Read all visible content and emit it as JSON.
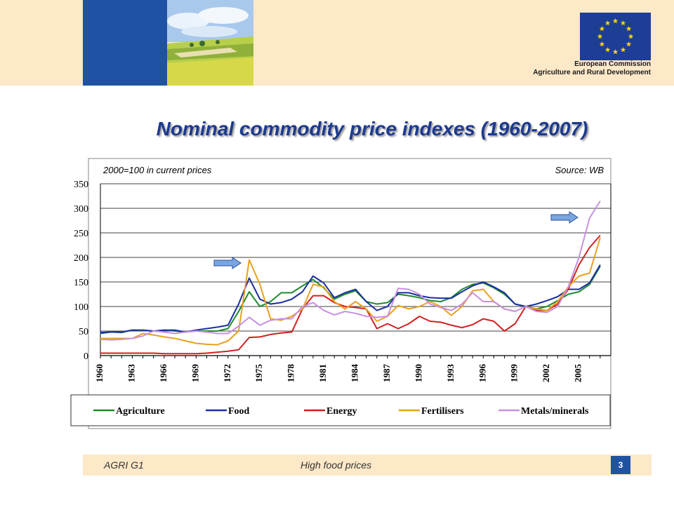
{
  "header": {
    "org_line1": "European Commission",
    "org_line2": "Agriculture and Rural Development"
  },
  "title": "Nominal commodity price indexes (1960-2007)",
  "footer": {
    "left": "AGRI G1",
    "middle": "High food prices",
    "page": "3"
  },
  "chart_data": {
    "type": "line",
    "subtitle": "2000=100 in current prices",
    "source": "Source: WB",
    "x": [
      1960,
      1961,
      1962,
      1963,
      1964,
      1965,
      1966,
      1967,
      1968,
      1969,
      1970,
      1971,
      1972,
      1973,
      1974,
      1975,
      1976,
      1977,
      1978,
      1979,
      1980,
      1981,
      1982,
      1983,
      1984,
      1985,
      1986,
      1987,
      1988,
      1989,
      1990,
      1991,
      1992,
      1993,
      1994,
      1995,
      1996,
      1997,
      1998,
      1999,
      2000,
      2001,
      2002,
      2003,
      2004,
      2005,
      2006,
      2007
    ],
    "xticks": [
      "1960",
      "1963",
      "1966",
      "1969",
      "1972",
      "1975",
      "1978",
      "1981",
      "1984",
      "1987",
      "1990",
      "1993",
      "1996",
      "1999",
      "2002",
      "2005"
    ],
    "ylim": [
      0,
      350
    ],
    "yticks": [
      0,
      50,
      100,
      150,
      200,
      250,
      300,
      350
    ],
    "grid": "horizontal",
    "legend_position": "bottom",
    "series": [
      {
        "name": "Agriculture",
        "color": "#1e8c2a",
        "values": [
          45,
          48,
          47,
          52,
          51,
          50,
          52,
          50,
          48,
          50,
          50,
          50,
          55,
          90,
          130,
          100,
          110,
          128,
          128,
          142,
          155,
          138,
          115,
          125,
          132,
          110,
          105,
          108,
          125,
          122,
          118,
          112,
          110,
          118,
          135,
          145,
          148,
          138,
          125,
          105,
          100,
          95,
          100,
          112,
          125,
          130,
          145,
          182
        ]
      },
      {
        "name": "Food",
        "color": "#1a2fa0",
        "values": [
          47,
          48,
          48,
          52,
          52,
          50,
          52,
          52,
          48,
          52,
          55,
          58,
          62,
          105,
          158,
          115,
          105,
          108,
          115,
          130,
          162,
          148,
          118,
          128,
          135,
          110,
          92,
          100,
          128,
          128,
          122,
          118,
          117,
          117,
          130,
          142,
          150,
          140,
          128,
          105,
          100,
          105,
          112,
          120,
          135,
          135,
          148,
          185
        ]
      },
      {
        "name": "Energy",
        "color": "#d42020",
        "values": [
          5,
          5,
          5,
          5,
          5,
          5,
          4,
          4,
          4,
          4,
          5,
          7,
          9,
          12,
          37,
          38,
          43,
          46,
          48,
          95,
          122,
          122,
          108,
          100,
          98,
          95,
          55,
          65,
          55,
          65,
          80,
          70,
          68,
          62,
          57,
          63,
          75,
          70,
          50,
          65,
          100,
          92,
          92,
          105,
          135,
          185,
          220,
          245
        ]
      },
      {
        "name": "Fertilisers",
        "color": "#e8a020",
        "values": [
          35,
          35,
          35,
          35,
          45,
          42,
          38,
          35,
          30,
          25,
          23,
          22,
          30,
          50,
          195,
          145,
          75,
          72,
          80,
          95,
          145,
          140,
          110,
          95,
          110,
          95,
          70,
          80,
          102,
          95,
          100,
          110,
          100,
          82,
          100,
          132,
          135,
          110,
          95,
          90,
          100,
          95,
          92,
          110,
          140,
          162,
          168,
          240
        ]
      },
      {
        "name": "Metals/minerals",
        "color": "#c890e0",
        "values": [
          33,
          32,
          33,
          35,
          40,
          50,
          48,
          45,
          48,
          50,
          48,
          45,
          45,
          60,
          78,
          62,
          72,
          75,
          75,
          100,
          108,
          92,
          83,
          90,
          86,
          80,
          78,
          80,
          137,
          135,
          125,
          105,
          98,
          92,
          105,
          128,
          110,
          110,
          95,
          90,
          100,
          90,
          88,
          100,
          140,
          200,
          280,
          315
        ]
      }
    ]
  }
}
